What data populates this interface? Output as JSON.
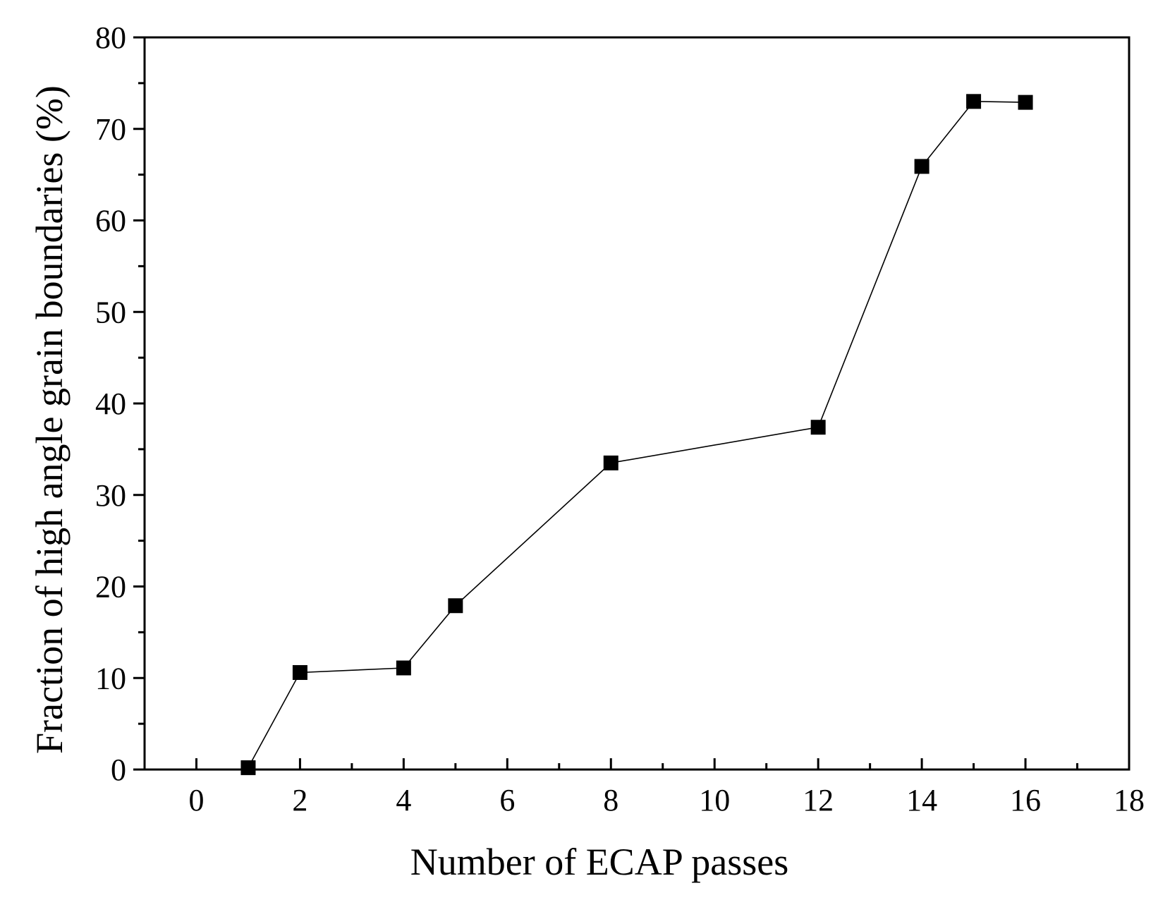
{
  "chart_data": {
    "type": "line",
    "xlabel": "Number of ECAP passes",
    "ylabel": "Fraction of high angle grain boundaries (%)",
    "xlim": [
      -1,
      18
    ],
    "ylim": [
      0,
      80
    ],
    "x_ticks": [
      "0",
      "2",
      "4",
      "6",
      "8",
      "10",
      "12",
      "14",
      "16",
      "18"
    ],
    "y_ticks": [
      "0",
      "10",
      "20",
      "30",
      "40",
      "50",
      "60",
      "70",
      "80"
    ],
    "grid": false,
    "marker": "square",
    "colors": {
      "line": "#000000",
      "marker": "#000000"
    },
    "series": [
      {
        "x": [
          1,
          2,
          4,
          5,
          8,
          12,
          14,
          15,
          16
        ],
        "values": [
          0.2,
          10.6,
          11.1,
          17.9,
          33.5,
          37.4,
          65.9,
          73.0,
          72.9
        ]
      }
    ]
  }
}
